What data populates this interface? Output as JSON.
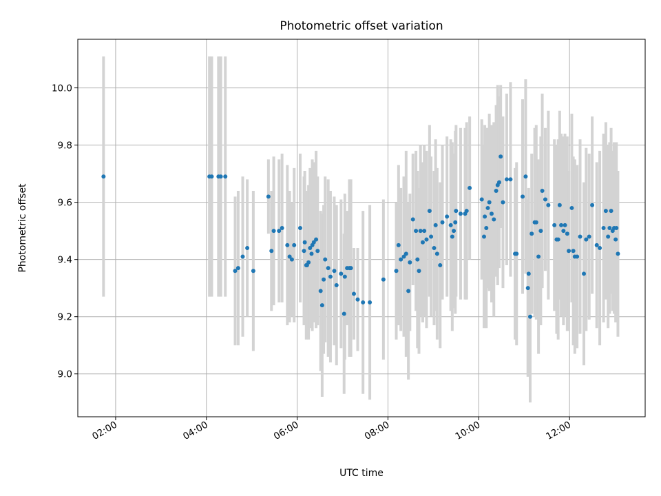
{
  "chart_data": {
    "type": "scatter",
    "title": "Photometric offset variation",
    "xlabel": "UTC time",
    "ylabel": "Photometric offset",
    "xlim": [
      "01:10",
      "13:40"
    ],
    "ylim": [
      8.85,
      10.17
    ],
    "xticks": [
      "02:00",
      "04:00",
      "06:00",
      "08:00",
      "10:00",
      "12:00"
    ],
    "yticks": [
      "9.0",
      "9.2",
      "9.4",
      "9.6",
      "9.8",
      "10.0"
    ],
    "grid": true,
    "legend": "none",
    "colors": {
      "points": "#1f77b4",
      "error_bars": "#d3d3d3"
    },
    "series": [
      {
        "x": [
          "01:44",
          "04:04",
          "04:07",
          "04:16",
          "04:19",
          "04:25",
          "04:38",
          "04:42",
          "04:48",
          "04:54",
          "05:02",
          "05:22",
          "05:26",
          "05:29",
          "05:36",
          "05:40",
          "05:47",
          "05:50",
          "05:53",
          "05:56",
          "06:04",
          "06:09",
          "06:10",
          "06:12",
          "06:13",
          "06:15",
          "06:17",
          "06:19",
          "06:20",
          "06:22",
          "06:25",
          "06:27",
          "06:31",
          "06:33",
          "06:35",
          "06:37",
          "06:41",
          "06:44",
          "06:49",
          "06:52",
          "06:58",
          "07:02",
          "07:03",
          "07:06",
          "07:09",
          "07:11",
          "07:15",
          "07:20",
          "07:27",
          "07:36",
          "07:54",
          "08:11",
          "08:14",
          "08:17",
          "08:21",
          "08:24",
          "08:27",
          "08:29",
          "08:33",
          "08:37",
          "08:39",
          "08:41",
          "08:43",
          "08:46",
          "08:48",
          "08:51",
          "08:55",
          "08:57",
          "09:01",
          "09:03",
          "09:05",
          "09:09",
          "09:12",
          "09:18",
          "09:23",
          "09:25",
          "09:27",
          "09:29",
          "09:30",
          "09:36",
          "09:42",
          "09:44",
          "09:48",
          "10:04",
          "10:07",
          "10:08",
          "10:10",
          "10:12",
          "10:14",
          "10:17",
          "10:20",
          "10:23",
          "10:25",
          "10:27",
          "10:29",
          "10:32",
          "10:37",
          "10:42",
          "10:48",
          "10:50",
          "10:58",
          "11:02",
          "11:05",
          "11:06",
          "11:08",
          "11:10",
          "11:14",
          "11:16",
          "11:19",
          "11:22",
          "11:24",
          "11:28",
          "11:32",
          "11:40",
          "11:43",
          "11:45",
          "11:47",
          "11:49",
          "11:52",
          "11:54",
          "11:57",
          "11:59",
          "12:03",
          "12:05",
          "12:07",
          "12:10",
          "12:14",
          "12:19",
          "12:22",
          "12:26",
          "12:30",
          "12:36",
          "12:40",
          "12:45",
          "12:48",
          "12:51",
          "12:53",
          "12:55",
          "12:57",
          "12:59",
          "13:01",
          "13:02",
          "13:04"
        ],
        "y": [
          9.69,
          9.69,
          9.69,
          9.69,
          9.69,
          9.69,
          9.36,
          9.37,
          9.41,
          9.44,
          9.36,
          9.62,
          9.43,
          9.5,
          9.5,
          9.51,
          9.45,
          9.41,
          9.4,
          9.45,
          9.51,
          9.43,
          9.46,
          9.38,
          9.38,
          9.39,
          9.44,
          9.42,
          9.45,
          9.46,
          9.47,
          9.43,
          9.29,
          9.24,
          9.33,
          9.4,
          9.37,
          9.34,
          9.36,
          9.31,
          9.35,
          9.21,
          9.34,
          9.37,
          9.37,
          9.37,
          9.28,
          9.26,
          9.25,
          9.25,
          9.33,
          9.36,
          9.45,
          9.4,
          9.41,
          9.42,
          9.29,
          9.39,
          9.54,
          9.5,
          9.4,
          9.36,
          9.5,
          9.46,
          9.5,
          9.47,
          9.57,
          9.48,
          9.44,
          9.52,
          9.42,
          9.38,
          9.53,
          9.55,
          9.52,
          9.48,
          9.5,
          9.53,
          9.57,
          9.56,
          9.56,
          9.57,
          9.65,
          9.61,
          9.48,
          9.55,
          9.51,
          9.58,
          9.6,
          9.56,
          9.54,
          9.64,
          9.66,
          9.67,
          9.76,
          9.6,
          9.68,
          9.68,
          9.42,
          9.42,
          9.62,
          9.69,
          9.3,
          9.35,
          9.2,
          9.49,
          9.53,
          9.53,
          9.41,
          9.5,
          9.64,
          9.61,
          9.59,
          9.52,
          9.47,
          9.47,
          9.59,
          9.52,
          9.5,
          9.52,
          9.49,
          9.43,
          9.58,
          9.43,
          9.41,
          9.41,
          9.48,
          9.35,
          9.47,
          9.48,
          9.59,
          9.45,
          9.44,
          9.51,
          9.57,
          9.48,
          9.51,
          9.57,
          9.5,
          9.51,
          9.47,
          9.51,
          9.42
        ],
        "err": [
          0.42,
          0.42,
          0.42,
          0.42,
          0.42,
          0.42,
          0.26,
          0.27,
          0.28,
          0.24,
          0.28,
          0.13,
          0.21,
          0.26,
          0.25,
          0.26,
          0.28,
          0.23,
          0.2,
          0.27,
          0.26,
          0.26,
          0.25,
          0.26,
          0.24,
          0.27,
          0.28,
          0.25,
          0.3,
          0.28,
          0.31,
          0.26,
          0.28,
          0.32,
          0.26,
          0.29,
          0.31,
          0.3,
          0.26,
          0.28,
          0.26,
          0.28,
          0.29,
          0.2,
          0.31,
          0.31,
          0.16,
          0.18,
          0.32,
          0.34,
          0.28,
          0.24,
          0.28,
          0.25,
          0.28,
          0.36,
          0.31,
          0.24,
          0.23,
          0.28,
          0.31,
          0.29,
          0.3,
          0.28,
          0.3,
          0.31,
          0.3,
          0.28,
          0.27,
          0.3,
          0.3,
          0.29,
          0.27,
          0.28,
          0.3,
          0.33,
          0.27,
          0.32,
          0.3,
          0.3,
          0.3,
          0.31,
          0.25,
          0.28,
          0.32,
          0.32,
          0.35,
          0.28,
          0.31,
          0.31,
          0.34,
          0.3,
          0.35,
          0.3,
          0.25,
          0.3,
          0.3,
          0.34,
          0.3,
          0.32,
          0.34,
          0.34,
          0.31,
          0.3,
          0.3,
          0.28,
          0.33,
          0.34,
          0.34,
          0.33,
          0.34,
          0.25,
          0.33,
          0.3,
          0.33,
          0.35,
          0.33,
          0.32,
          0.33,
          0.32,
          0.34,
          0.28,
          0.33,
          0.33,
          0.34,
          0.32,
          0.34,
          0.32,
          0.32,
          0.29,
          0.31,
          0.29,
          0.34,
          0.33,
          0.31,
          0.32,
          0.3,
          0.29,
          0.28,
          0.3,
          0.29,
          0.3,
          0.29
        ]
      }
    ]
  }
}
